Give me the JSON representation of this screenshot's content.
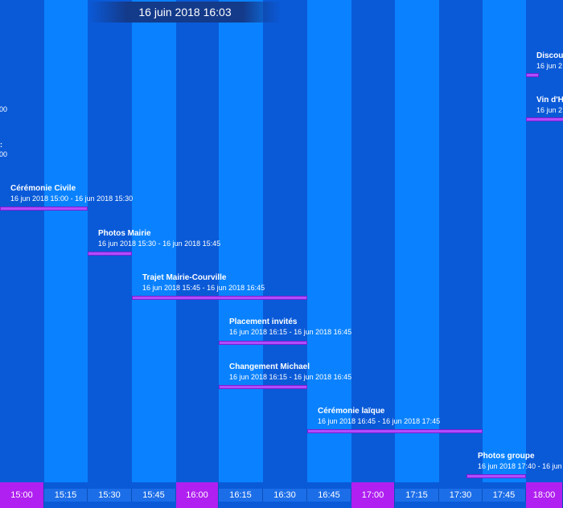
{
  "header": {
    "date": "16 juin 2018 16:03"
  },
  "fragments": {
    "a": "00",
    "b": ":",
    "c": "00",
    "d": "Discou",
    "e": "16 jun 2",
    "f": "Vin d'H",
    "g": "16 jun 2"
  },
  "events": [
    {
      "title": "Cérémonie Civile",
      "range": "16 jun 2018 15:00 - 16 jun 2018 15:30"
    },
    {
      "title": "Photos Mairie",
      "range": "16 jun 2018 15:30 - 16 jun 2018 15:45"
    },
    {
      "title": "Trajet Mairie-Courville",
      "range": "16 jun 2018 15:45 - 16 jun 2018 16:45"
    },
    {
      "title": "Placement invités",
      "range": "16 jun 2018 16:15 - 16 jun 2018 16:45"
    },
    {
      "title": "Changement Michael",
      "range": "16 jun 2018 16:15 - 16 jun 2018 16:45"
    },
    {
      "title": "Cérémonie laïque",
      "range": "16 jun 2018 16:45 - 16 jun 2018 17:45"
    },
    {
      "title": "Photos groupe",
      "range": "16 jun 2018 17:40 - 16 jun"
    }
  ],
  "axis": {
    "ticks": [
      "15:00",
      "15:15",
      "15:30",
      "15:45",
      "16:00",
      "16:15",
      "16:30",
      "16:45",
      "17:00",
      "17:15",
      "17:30",
      "17:45",
      "18:00"
    ]
  },
  "colors": {
    "column_dark": "#0a5ad8",
    "column_light": "#0a82ff",
    "bar": "#b14cff",
    "hour_tick": "#b020f0"
  }
}
